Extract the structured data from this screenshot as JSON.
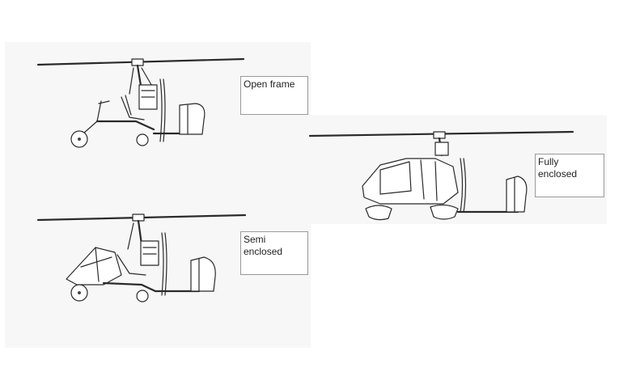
{
  "gyroplanes": [
    {
      "id": "open",
      "label_lines": [
        "Open frame"
      ]
    },
    {
      "id": "semi",
      "label_lines": [
        "Semi",
        "enclosed"
      ]
    },
    {
      "id": "full",
      "label_lines": [
        "Fully",
        "enclosed"
      ]
    }
  ],
  "colors": {
    "panel": "#f7f7f7",
    "ink": "#2a2a2a",
    "label_border": "#9a9a9a"
  },
  "icons": [
    "open-frame-gyroplane-drawing",
    "semi-enclosed-gyroplane-drawing",
    "fully-enclosed-gyroplane-drawing"
  ]
}
